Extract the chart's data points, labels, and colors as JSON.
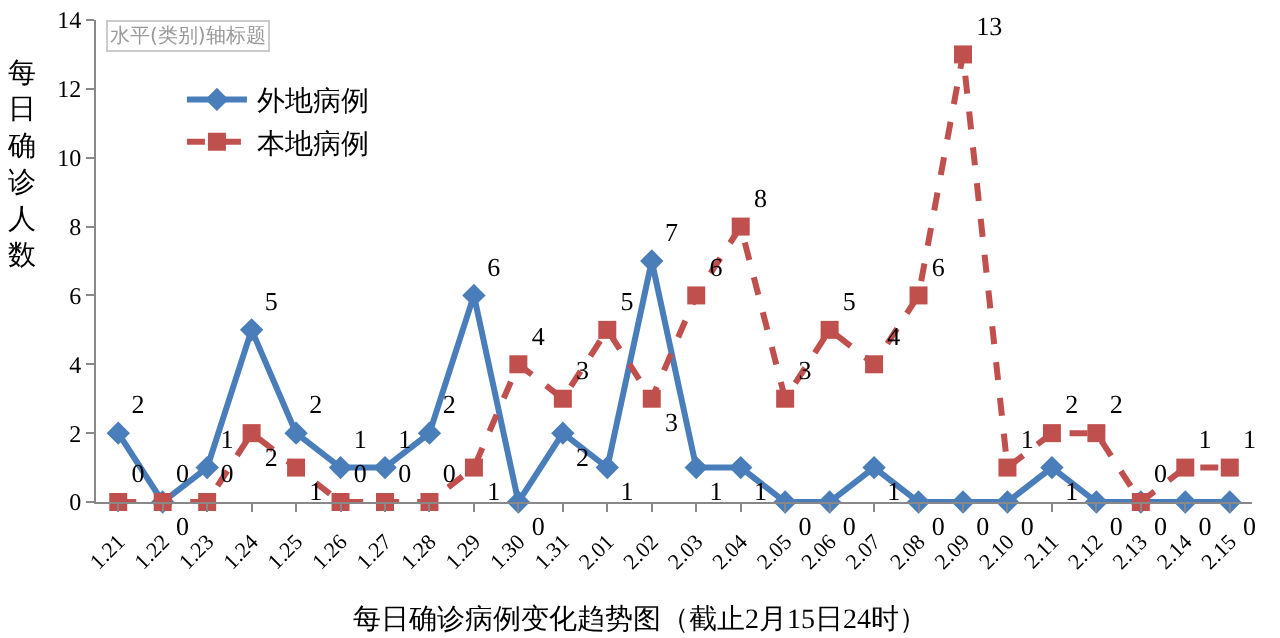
{
  "chart_data": {
    "type": "line",
    "title": "每日确诊病例变化趋势图（截止2月15日24时）",
    "ylabel": "每日确诊人数",
    "annotations": [
      "水平(类别)轴标题"
    ],
    "categories": [
      "1.21",
      "1.22",
      "1.23",
      "1.24",
      "1.25",
      "1.26",
      "1.27",
      "1.28",
      "1.29",
      "1.30",
      "1.31",
      "2.01",
      "2.02",
      "2.03",
      "2.04",
      "2.05",
      "2.06",
      "2.07",
      "2.08",
      "2.09",
      "2.10",
      "2.11",
      "2.12",
      "2.13",
      "2.14",
      "2.15"
    ],
    "series": [
      {
        "name": "外地病例",
        "color": "#4a7ebb",
        "marker": "diamond",
        "line_style": "solid",
        "values": [
          2,
          0,
          1,
          5,
          2,
          1,
          1,
          2,
          6,
          0,
          2,
          1,
          7,
          1,
          1,
          0,
          0,
          1,
          0,
          0,
          0,
          1,
          0,
          0,
          0,
          0
        ]
      },
      {
        "name": "本地病例",
        "color": "#c0504d",
        "marker": "square",
        "line_style": "dashed",
        "values": [
          0,
          0,
          0,
          2,
          1,
          0,
          0,
          0,
          1,
          4,
          3,
          5,
          3,
          6,
          8,
          3,
          5,
          4,
          6,
          13,
          1,
          2,
          2,
          0,
          1,
          1
        ]
      }
    ],
    "ylim": [
      0,
      14
    ],
    "yticks": [
      0,
      2,
      4,
      6,
      8,
      10,
      12,
      14
    ],
    "grid": false,
    "legend": "top left",
    "data_labels": true
  }
}
